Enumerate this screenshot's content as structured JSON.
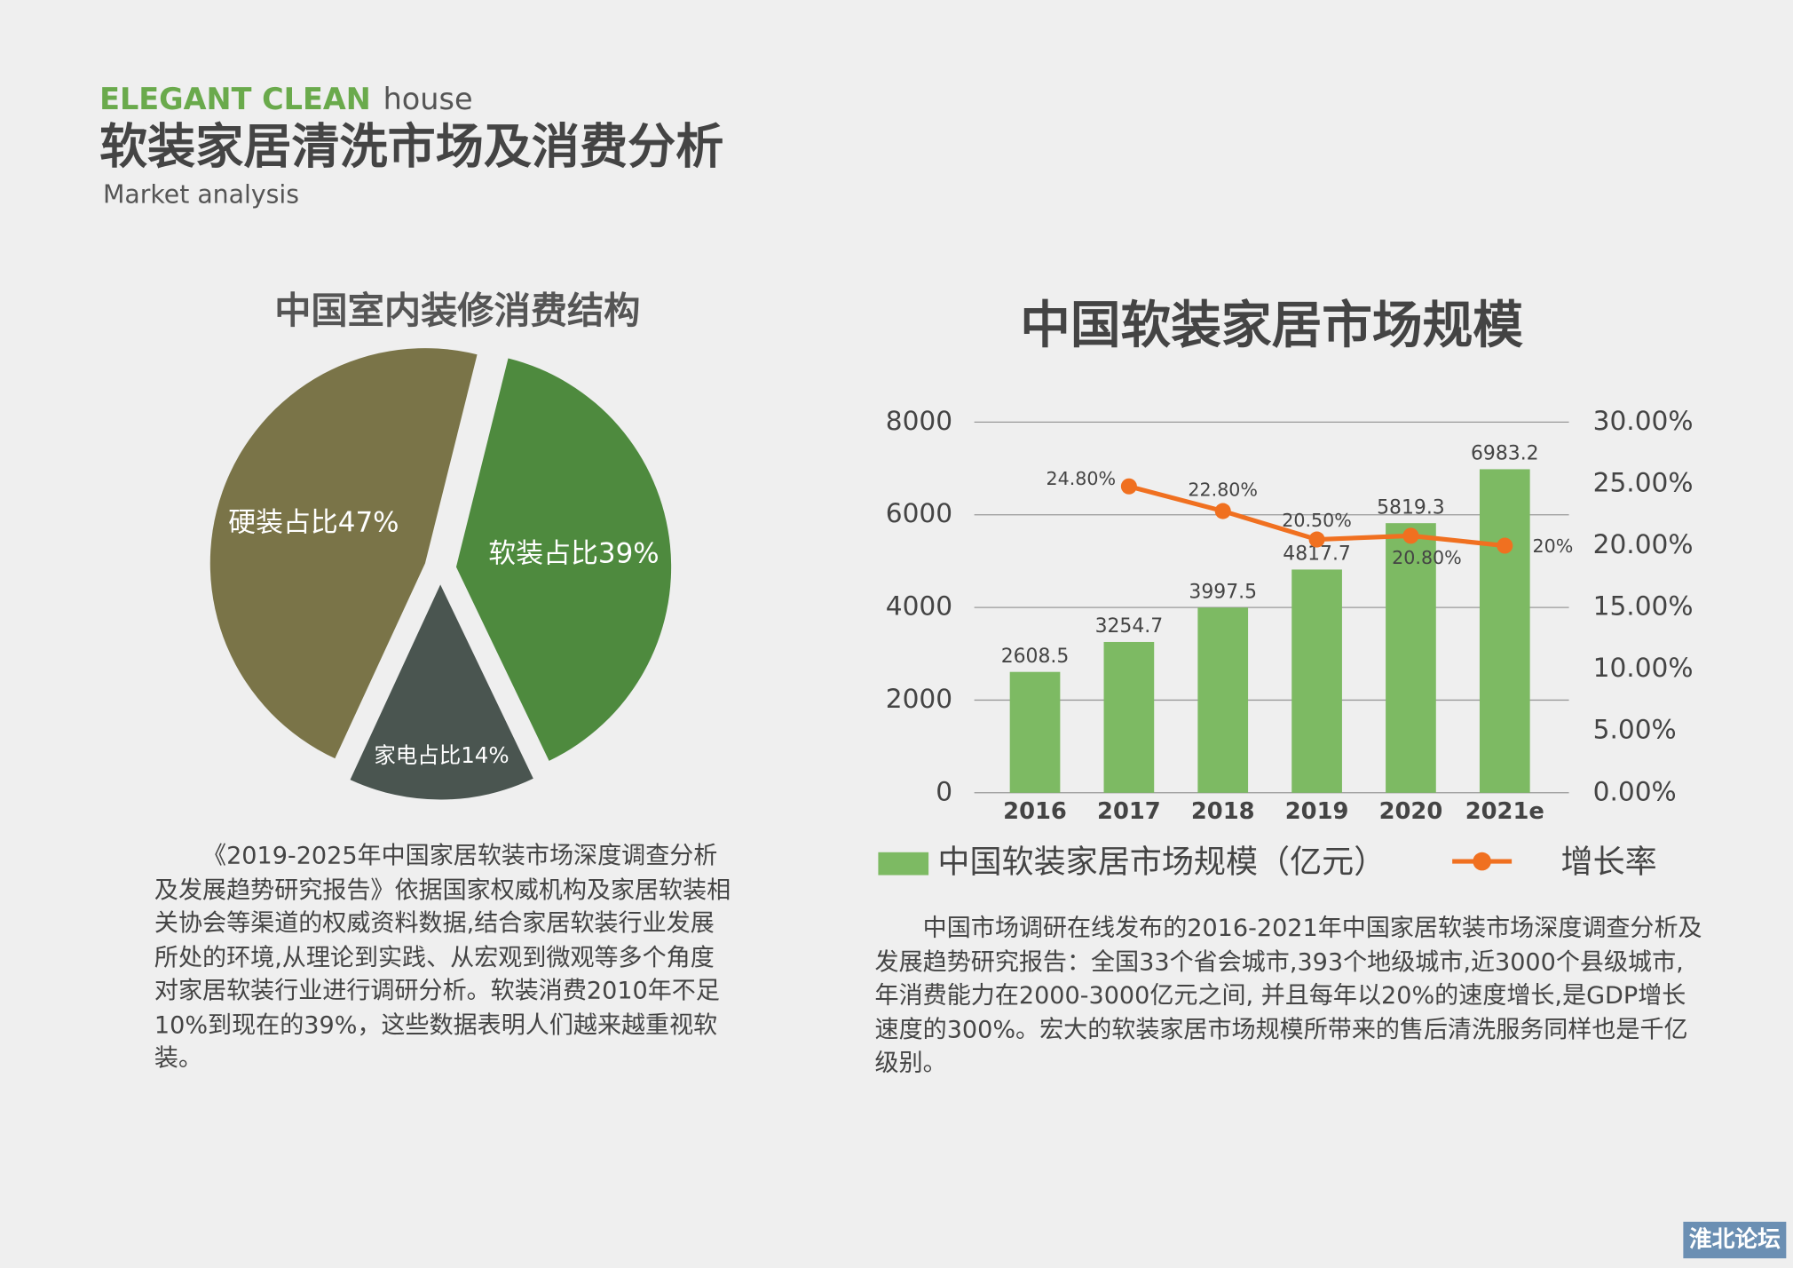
{
  "header": {
    "brand": "ELEGANT CLEAN",
    "brand2": "house",
    "title": "软装家居清洗市场及消费分析",
    "subtitle": "Market analysis"
  },
  "chart_data": [
    {
      "type": "pie",
      "title": "中国室内装修消费结构",
      "categories": [
        "软装占比39%",
        "家电占比14%",
        "硬装占比47%"
      ],
      "values": [
        39,
        14,
        47
      ],
      "colors": [
        "#4e8a3e",
        "#4a5550",
        "#7a7448"
      ]
    },
    {
      "type": "bar",
      "title": "中国软装家居市场规模",
      "categories": [
        "2016",
        "2017",
        "2018",
        "2019",
        "2020",
        "2021e"
      ],
      "series": [
        {
          "name": "中国软装家居市场规模（亿元）",
          "color": "#7dba63",
          "values": [
            2608.5,
            3254.7,
            3997.5,
            4817.7,
            5819.3,
            6983.2
          ]
        },
        {
          "name": "增长率",
          "type": "line",
          "axis": "y2",
          "color": "#f07020",
          "values": [
            null,
            24.8,
            22.8,
            20.5,
            20.8,
            20
          ],
          "value_labels": [
            null,
            "24.80%",
            "22.80%",
            "20.50%",
            "20.80%",
            "20%"
          ]
        }
      ],
      "ylim": [
        0,
        8000
      ],
      "yticks": [
        0,
        2000,
        4000,
        6000,
        8000
      ],
      "y2lim": [
        0,
        30
      ],
      "y2ticks": [
        {
          "value": 0,
          "label": "0.00%"
        },
        {
          "value": 5,
          "label": "5.00%"
        },
        {
          "value": 10,
          "label": "10.00%"
        },
        {
          "value": 15,
          "label": "15.00%"
        },
        {
          "value": 20,
          "label": "20.00%"
        },
        {
          "value": 25,
          "label": "25.00%"
        },
        {
          "value": 30,
          "label": "30.00%"
        }
      ],
      "grid": true
    }
  ],
  "paragraphs": [
    "《2019-2025年中国家居软装市场深度调查分析及发展趋势研究报告》依据国家权威机构及家居软装相关协会等渠道的权威资料数据,结合家居软装行业发展所处的环境,从理论到实践、从宏观到微观等多个角度对家居软装行业进行调研分析。软装消费2010年不足10%到现在的39%，这些数据表明人们越来越重视软装。",
    "中国市场调研在线发布的2016-2021年中国家居软装市场深度调查分析及发展趋势研究报告：全国33个省会城市,393个地级城市,近3000个县级城市,年消费能力在2000-3000亿元之间, 并且每年以20%的速度增长,是GDP增长速度的300%。宏大的软装家居市场规模所带来的售后清洗服务同样也是千亿级别。"
  ],
  "watermark": "淮北论坛"
}
